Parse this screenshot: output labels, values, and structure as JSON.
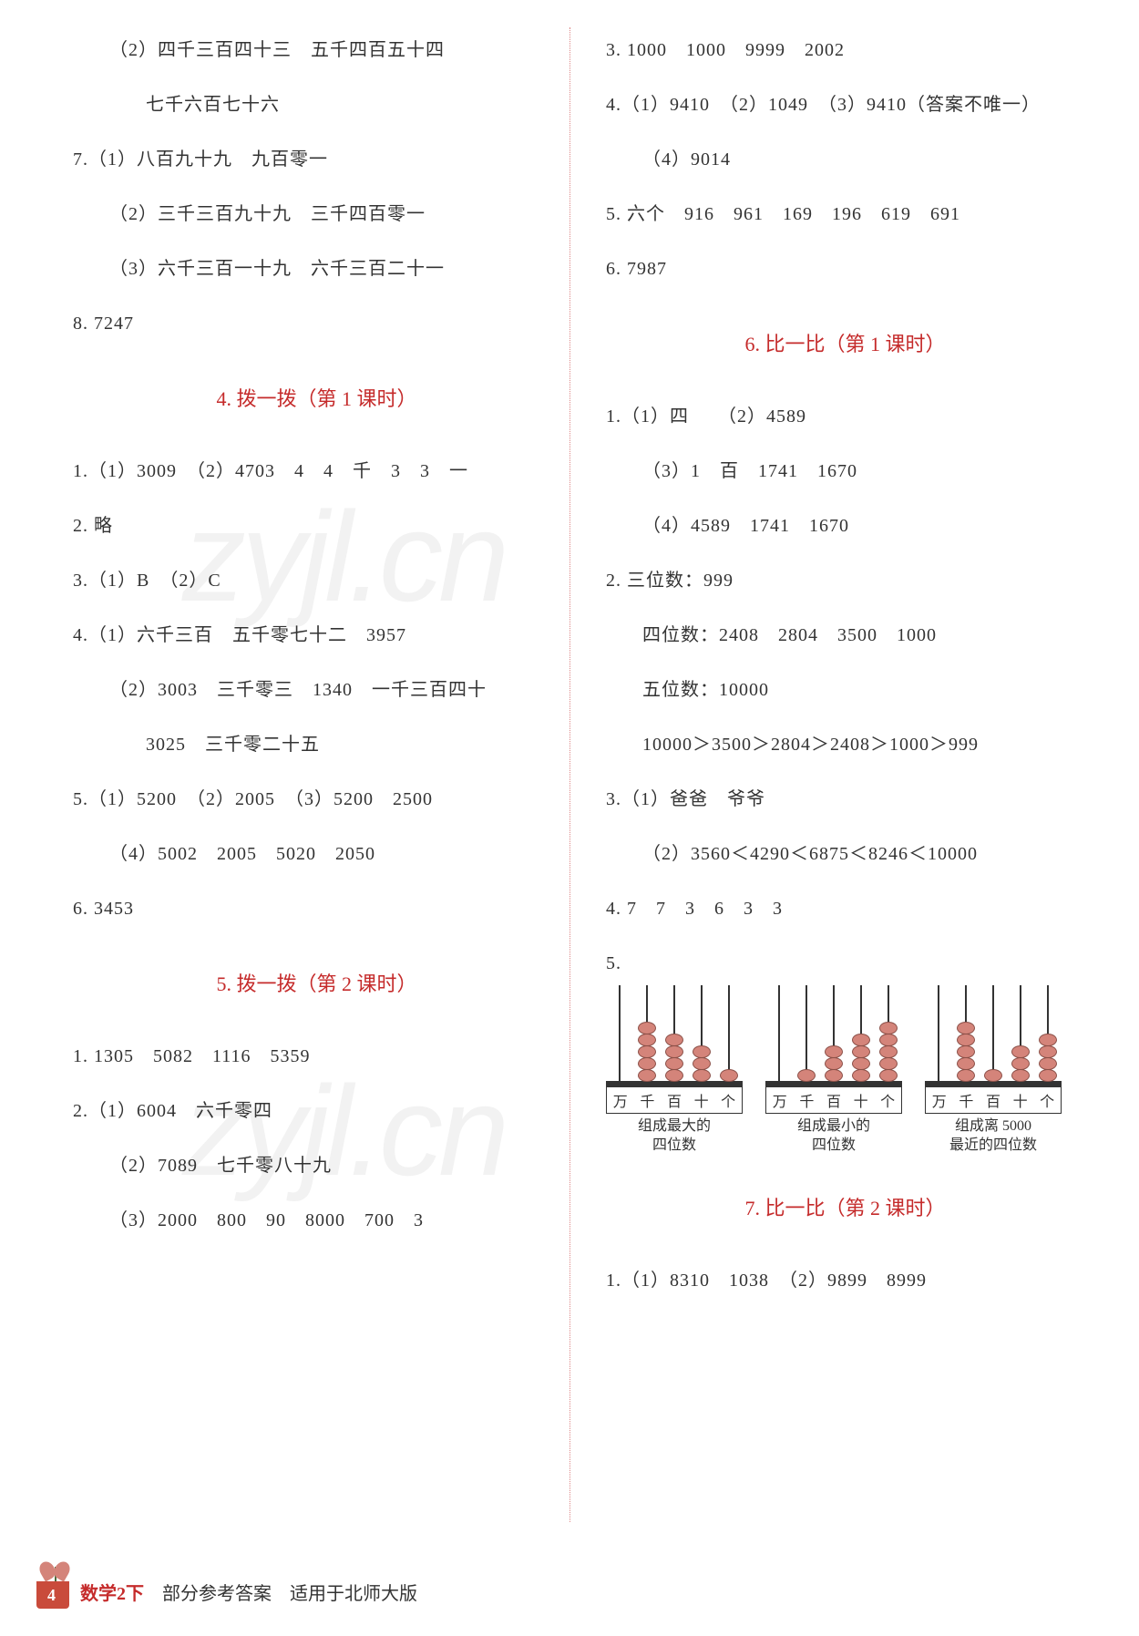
{
  "left": {
    "l1": "（2）四千三百四十三　五千四百五十四",
    "l2": "七千六百七十六",
    "l3": "7.（1）八百九十九　九百零一",
    "l4": "（2）三千三百九十九　三千四百零一",
    "l5": "（3）六千三百一十九　六千三百二十一",
    "l6": "8. 7247",
    "h1": "4. 拨一拨（第 1 课时）",
    "l7": "1.（1）3009　（2）4703　4　4　千　3　3　一",
    "l8": "2. 略",
    "l9": "3.（1）B　（2）C",
    "l10": "4.（1）六千三百　五千零七十二　3957",
    "l11": "（2）3003　三千零三　1340　一千三百四十",
    "l12": "3025　三千零二十五",
    "l13": "5.（1）5200　（2）2005　（3）5200　2500",
    "l14": "（4）5002　2005　5020　2050",
    "l15": "6. 3453",
    "h2": "5. 拨一拨（第 2 课时）",
    "l16": "1. 1305　5082　1116　5359",
    "l17": "2.（1）6004　六千零四",
    "l18": "（2）7089　七千零八十九",
    "l19": "（3）2000　800　90　8000　700　3"
  },
  "right": {
    "r1": "3. 1000　1000　9999　2002",
    "r2": "4.（1）9410　（2）1049　（3）9410（答案不唯一）",
    "r3": "（4）9014",
    "r4": "5. 六个　916　961　169　196　619　691",
    "r5": "6. 7987",
    "h3": "6. 比一比（第 1 课时）",
    "r6": "1.（1）四　　（2）4589",
    "r7": "（3）1　百　1741　1670",
    "r8": "（4）4589　1741　1670",
    "r9": "2. 三位数：999",
    "r10": "四位数：2408　2804　3500　1000",
    "r11": "五位数：10000",
    "r12": "10000＞3500＞2804＞2408＞1000＞999",
    "r13": "3.（1）爸爸　爷爷",
    "r14": "（2）3560＜4290＜6875＜8246＜10000",
    "r15": "4. 7　7　3　6　3　3",
    "r16": "5.",
    "h4": "7. 比一比（第 2 课时）",
    "r17": "1.（1）8310　1038　（2）9899　8999"
  },
  "abacus": {
    "places": [
      "万",
      "千",
      "百",
      "十",
      "个"
    ],
    "a1": {
      "beads": [
        0,
        5,
        4,
        3,
        1
      ],
      "cap1": "组成最大的",
      "cap2": "四位数"
    },
    "a2": {
      "beads": [
        0,
        1,
        3,
        4,
        5
      ],
      "cap1": "组成最小的",
      "cap2": "四位数"
    },
    "a3": {
      "beads": [
        0,
        5,
        1,
        3,
        4
      ],
      "cap1": "组成离 5000",
      "cap2": "最近的四位数"
    }
  },
  "footer": {
    "page": "4",
    "subject": "数学",
    "grade": "2下",
    "rest": "部分参考答案　适用于北师大版"
  },
  "watermark": "zyjl.cn",
  "colors": {
    "heading": "#c52b2b",
    "text": "#333333",
    "bead": "#d4847a",
    "pot": "#c94b3b"
  }
}
